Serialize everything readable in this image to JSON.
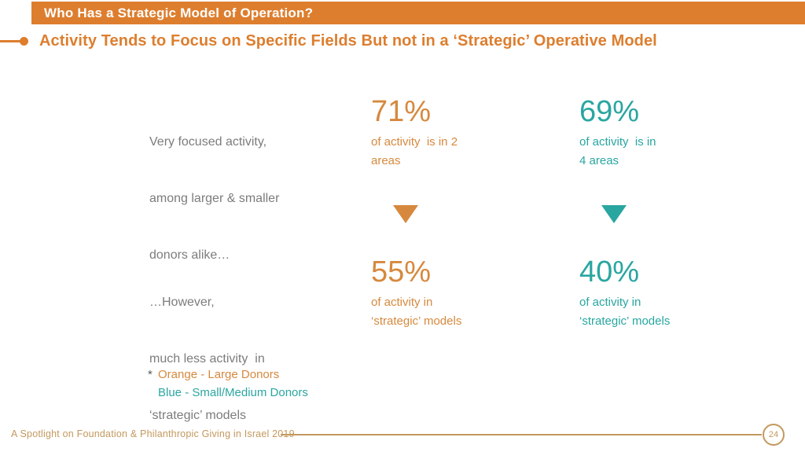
{
  "colors": {
    "header_orange": "#DD7E2E",
    "accent_orange": "#D6893E",
    "teal": "#2AA6A1",
    "gray": "#7C7C7C",
    "tan": "#C3995E"
  },
  "header": {
    "title": "Who Has a Strategic Model of Operation?"
  },
  "subtitle": "Activity Tends to Focus on Specific Fields But not in a ‘Strategic’ Operative Model",
  "sections": {
    "focused": {
      "label_line1": "Very focused activity,",
      "label_line2": "among larger & smaller",
      "label_line3": "donors alike…",
      "large_donors": {
        "value": "71%",
        "desc_line1": "of activity  is in 2",
        "desc_line2": "areas"
      },
      "small_donors": {
        "value": "69%",
        "desc_line1": "of activity  is in",
        "desc_line2": "4 areas"
      }
    },
    "strategic": {
      "label_line1": "…However,",
      "label_line2": "much less activity  in",
      "label_line3": "‘strategic’ models",
      "large_donors": {
        "value": "55%",
        "desc_line1": "of activity in",
        "desc_line2": "‘strategic’ models"
      },
      "small_donors": {
        "value": "40%",
        "desc_line1": "of activity in",
        "desc_line2": "‘strategic’ models"
      }
    }
  },
  "legend": {
    "marker": "*",
    "orange_label": "Orange - Large Donors",
    "blue_label": "Blue - Small/Medium Donors"
  },
  "footer": {
    "text": "A Spotlight on Foundation & Philanthropic Giving in Israel 2019",
    "page_number": "24"
  }
}
